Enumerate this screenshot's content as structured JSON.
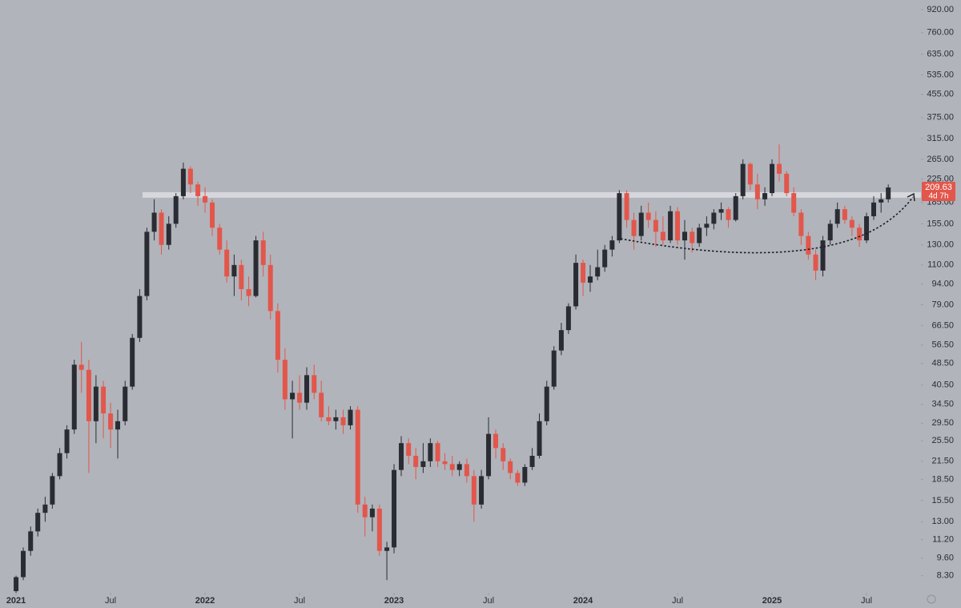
{
  "chart_data": {
    "type": "candlestick",
    "x": [
      2021.0,
      2021.038,
      2021.077,
      2021.115,
      2021.154,
      2021.192,
      2021.231,
      2021.269,
      2021.308,
      2021.346,
      2021.385,
      2021.423,
      2021.462,
      2021.5,
      2021.538,
      2021.577,
      2021.615,
      2021.654,
      2021.692,
      2021.731,
      2021.769,
      2021.808,
      2021.846,
      2021.885,
      2021.923,
      2021.962,
      2022.0,
      2022.038,
      2022.077,
      2022.115,
      2022.154,
      2022.192,
      2022.231,
      2022.269,
      2022.308,
      2022.346,
      2022.385,
      2022.423,
      2022.462,
      2022.5,
      2022.538,
      2022.577,
      2022.615,
      2022.654,
      2022.692,
      2022.731,
      2022.769,
      2022.808,
      2022.846,
      2022.885,
      2022.923,
      2022.962,
      2023.0,
      2023.038,
      2023.077,
      2023.115,
      2023.154,
      2023.192,
      2023.231,
      2023.269,
      2023.308,
      2023.346,
      2023.385,
      2023.423,
      2023.462,
      2023.5,
      2023.538,
      2023.577,
      2023.615,
      2023.654,
      2023.692,
      2023.731,
      2023.769,
      2023.808,
      2023.846,
      2023.885,
      2023.923,
      2023.962,
      2024.0,
      2024.038,
      2024.077,
      2024.115,
      2024.154,
      2024.192,
      2024.231,
      2024.269,
      2024.308,
      2024.346,
      2024.385,
      2024.423,
      2024.462,
      2024.5,
      2024.538,
      2024.577,
      2024.615,
      2024.654,
      2024.692,
      2024.731,
      2024.769,
      2024.808,
      2024.846,
      2024.885,
      2024.923,
      2024.962,
      2025.0,
      2025.038,
      2025.077,
      2025.115,
      2025.154,
      2025.192,
      2025.231,
      2025.269,
      2025.308,
      2025.346,
      2025.385,
      2025.423,
      2025.462,
      2025.5,
      2025.538,
      2025.577,
      2025.615
    ],
    "open": [
      7.3,
      8.2,
      10.2,
      12,
      14,
      15,
      19,
      23,
      28,
      48,
      46,
      30,
      40,
      32,
      28,
      30,
      40,
      60,
      85,
      145,
      170,
      130,
      155,
      195,
      245,
      215,
      195,
      185,
      150,
      125,
      100,
      110,
      90,
      85,
      135,
      110,
      75,
      50,
      36,
      38,
      35,
      44,
      38,
      31,
      30,
      31,
      29,
      33,
      15,
      13.5,
      14.5,
      10.2,
      10.5,
      20,
      25,
      22.5,
      20.5,
      21.5,
      25,
      21.5,
      21,
      20,
      21,
      19,
      15,
      19,
      27,
      24,
      21.5,
      19.5,
      18,
      20.5,
      22.5,
      30,
      40,
      54,
      64,
      78,
      112,
      95,
      100,
      108,
      125,
      135,
      200,
      160,
      140,
      170,
      160,
      145,
      135,
      172,
      135,
      145,
      132,
      150,
      155,
      170,
      175,
      160,
      195,
      255,
      215,
      190,
      200,
      255,
      235,
      200,
      170,
      140,
      120,
      105,
      135,
      155,
      175,
      160,
      150,
      135,
      165,
      185,
      190
    ],
    "high": [
      8.3,
      10.5,
      12.5,
      14.5,
      16,
      19.5,
      24,
      29,
      50,
      58,
      50,
      44,
      42,
      35,
      33,
      42,
      62,
      90,
      150,
      190,
      175,
      165,
      200,
      258,
      250,
      220,
      210,
      190,
      155,
      135,
      120,
      115,
      100,
      140,
      145,
      120,
      80,
      55,
      42,
      44,
      47,
      48,
      42,
      34,
      33,
      33,
      34,
      34,
      16,
      15,
      15,
      11,
      21,
      26.5,
      26,
      24,
      25,
      26,
      25.5,
      23,
      22.5,
      21.5,
      22,
      20,
      20,
      31,
      28,
      25,
      22,
      20,
      21,
      24,
      32,
      42,
      56,
      68,
      80,
      120,
      115,
      110,
      125,
      130,
      140,
      205,
      205,
      170,
      180,
      185,
      172,
      165,
      180,
      178,
      160,
      150,
      155,
      165,
      175,
      185,
      178,
      200,
      265,
      258,
      235,
      210,
      265,
      300,
      240,
      210,
      175,
      145,
      125,
      140,
      160,
      185,
      180,
      165,
      155,
      170,
      195,
      200,
      215
    ],
    "low": [
      7.2,
      8,
      9.8,
      11.5,
      13,
      14.5,
      18.5,
      22,
      27,
      38,
      19.5,
      25,
      26,
      24,
      22,
      29,
      39,
      58,
      82,
      135,
      120,
      125,
      150,
      190,
      200,
      180,
      170,
      140,
      120,
      95,
      85,
      82,
      78,
      84,
      100,
      70,
      45,
      33,
      26,
      33,
      33,
      36,
      30,
      29,
      28,
      27,
      28,
      14,
      11.5,
      12,
      9.8,
      8,
      10,
      19,
      21,
      18.5,
      19.5,
      20.5,
      20.5,
      20,
      19,
      19,
      18,
      13,
      14.5,
      18.5,
      22,
      20,
      18.5,
      17.5,
      17.5,
      20,
      22,
      29,
      39,
      52,
      62,
      76,
      85,
      88,
      97,
      104,
      118,
      132,
      150,
      125,
      135,
      150,
      128,
      130,
      132,
      130,
      115,
      122,
      128,
      140,
      148,
      160,
      150,
      158,
      190,
      205,
      175,
      180,
      195,
      220,
      195,
      165,
      130,
      115,
      97,
      100,
      130,
      150,
      155,
      140,
      128,
      132,
      160,
      170,
      185
    ],
    "close": [
      8.2,
      10.2,
      12,
      14,
      15,
      19,
      23,
      28,
      48,
      46,
      30,
      40,
      32,
      28,
      30,
      40,
      60,
      85,
      145,
      170,
      130,
      155,
      195,
      245,
      215,
      195,
      185,
      150,
      125,
      100,
      110,
      90,
      85,
      135,
      110,
      75,
      50,
      36,
      38,
      35,
      44,
      38,
      31,
      30,
      31,
      29,
      33,
      15,
      13.5,
      14.5,
      10.2,
      10.5,
      20,
      25,
      22.5,
      20.5,
      21.5,
      25,
      21.5,
      21,
      20,
      21,
      19,
      15,
      19,
      27,
      24,
      21.5,
      19.5,
      18,
      20.5,
      22.5,
      30,
      40,
      54,
      64,
      78,
      112,
      95,
      100,
      108,
      125,
      135,
      200,
      160,
      140,
      170,
      160,
      145,
      135,
      172,
      135,
      145,
      132,
      150,
      155,
      170,
      175,
      160,
      195,
      255,
      215,
      190,
      200,
      255,
      235,
      200,
      170,
      140,
      120,
      105,
      135,
      155,
      175,
      160,
      150,
      135,
      165,
      185,
      190,
      209.63
    ],
    "up_color": "#2a2c33",
    "down_color": "#e2564b",
    "resistance_level": 197,
    "countdown": "4d 7h",
    "log_scale": true,
    "xlim": [
      2020.915,
      2025.788
    ],
    "xticks": [
      {
        "value": 2021,
        "label": "2021"
      },
      {
        "value": 2021.5,
        "label": "Jul"
      },
      {
        "value": 2022,
        "label": "2022"
      },
      {
        "value": 2022.5,
        "label": "Jul"
      },
      {
        "value": 2023,
        "label": "2023"
      },
      {
        "value": 2023.5,
        "label": "Jul"
      },
      {
        "value": 2024,
        "label": "2024"
      },
      {
        "value": 2024.5,
        "label": "Jul"
      },
      {
        "value": 2025,
        "label": "2025"
      },
      {
        "value": 2025.5,
        "label": "Jul"
      }
    ],
    "ylim": [
      7.2,
      997
    ],
    "yticks": [
      {
        "value": 920,
        "label": "920.00"
      },
      {
        "value": 760,
        "label": "760.00"
      },
      {
        "value": 635,
        "label": "635.00"
      },
      {
        "value": 535,
        "label": "535.00"
      },
      {
        "value": 455,
        "label": "455.00"
      },
      {
        "value": 375,
        "label": "375.00"
      },
      {
        "value": 315,
        "label": "315.00"
      },
      {
        "value": 265,
        "label": "265.00"
      },
      {
        "value": 225,
        "label": "225.00"
      },
      {
        "value": 185,
        "label": "185.00"
      },
      {
        "value": 155,
        "label": "155.00"
      },
      {
        "value": 130,
        "label": "130.00"
      },
      {
        "value": 110,
        "label": "110.00"
      },
      {
        "value": 94,
        "label": "94.00"
      },
      {
        "value": 79,
        "label": "79.00"
      },
      {
        "value": 66.5,
        "label": "66.50"
      },
      {
        "value": 56.5,
        "label": "56.50"
      },
      {
        "value": 48.5,
        "label": "48.50"
      },
      {
        "value": 40.5,
        "label": "40.50"
      },
      {
        "value": 34.5,
        "label": "34.50"
      },
      {
        "value": 29.5,
        "label": "29.50"
      },
      {
        "value": 25.5,
        "label": "25.50"
      },
      {
        "value": 21.5,
        "label": "21.50"
      },
      {
        "value": 18.5,
        "label": "18.50"
      },
      {
        "value": 15.5,
        "label": "15.50"
      },
      {
        "value": 13,
        "label": "13.00"
      },
      {
        "value": 11.2,
        "label": "11.20"
      },
      {
        "value": 9.6,
        "label": "9.60"
      },
      {
        "value": 8.3,
        "label": "8.30"
      }
    ]
  }
}
